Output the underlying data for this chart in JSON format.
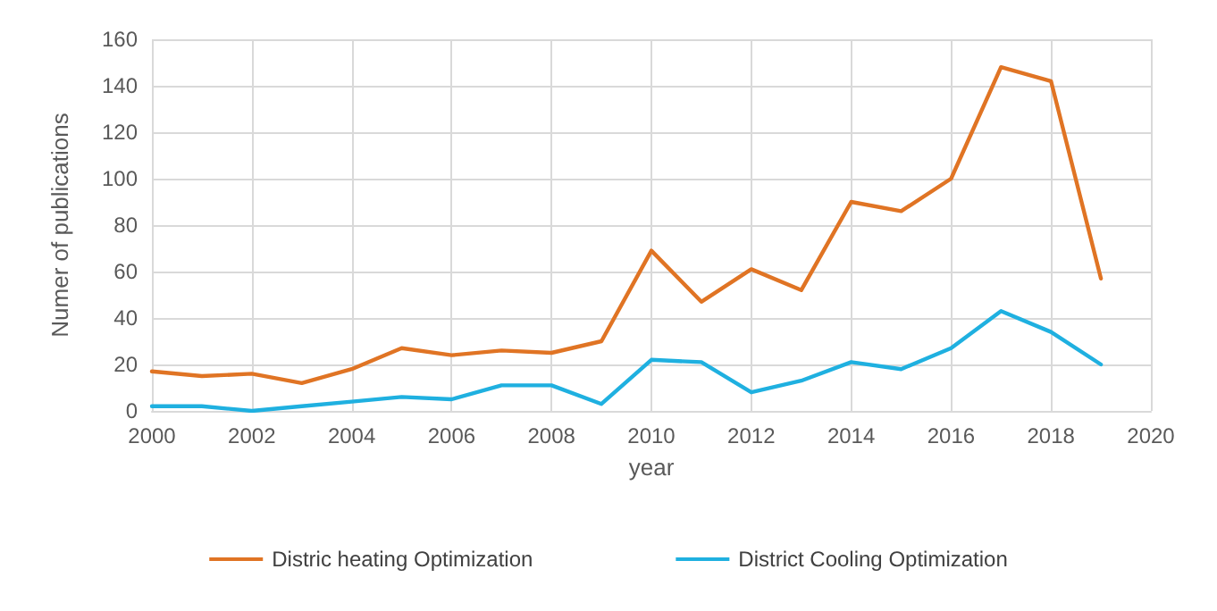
{
  "chart_data": {
    "type": "line",
    "xlabel": "year",
    "ylabel": "Numer of publications",
    "x": [
      2000,
      2001,
      2002,
      2003,
      2004,
      2005,
      2006,
      2007,
      2008,
      2009,
      2010,
      2011,
      2012,
      2013,
      2014,
      2015,
      2016,
      2017,
      2018,
      2019
    ],
    "series": [
      {
        "name": "Distric heating Optimization",
        "color": "#e07424",
        "values": [
          17,
          15,
          16,
          12,
          18,
          27,
          24,
          26,
          25,
          30,
          69,
          47,
          61,
          52,
          90,
          86,
          100,
          148,
          142,
          57
        ]
      },
      {
        "name": "District Cooling Optimization",
        "color": "#1fb0e0",
        "values": [
          2,
          2,
          0,
          2,
          4,
          6,
          5,
          11,
          11,
          3,
          22,
          21,
          8,
          13,
          21,
          18,
          27,
          43,
          34,
          20
        ]
      }
    ],
    "xlim": [
      2000,
      2020
    ],
    "xticks": [
      2000,
      2002,
      2004,
      2006,
      2008,
      2010,
      2012,
      2014,
      2016,
      2018,
      2020
    ],
    "ylim": [
      0,
      160
    ],
    "yticks": [
      0,
      20,
      40,
      60,
      80,
      100,
      120,
      140,
      160
    ],
    "grid": true,
    "legend": "bottom",
    "marker": "none",
    "line_style": "solid"
  }
}
